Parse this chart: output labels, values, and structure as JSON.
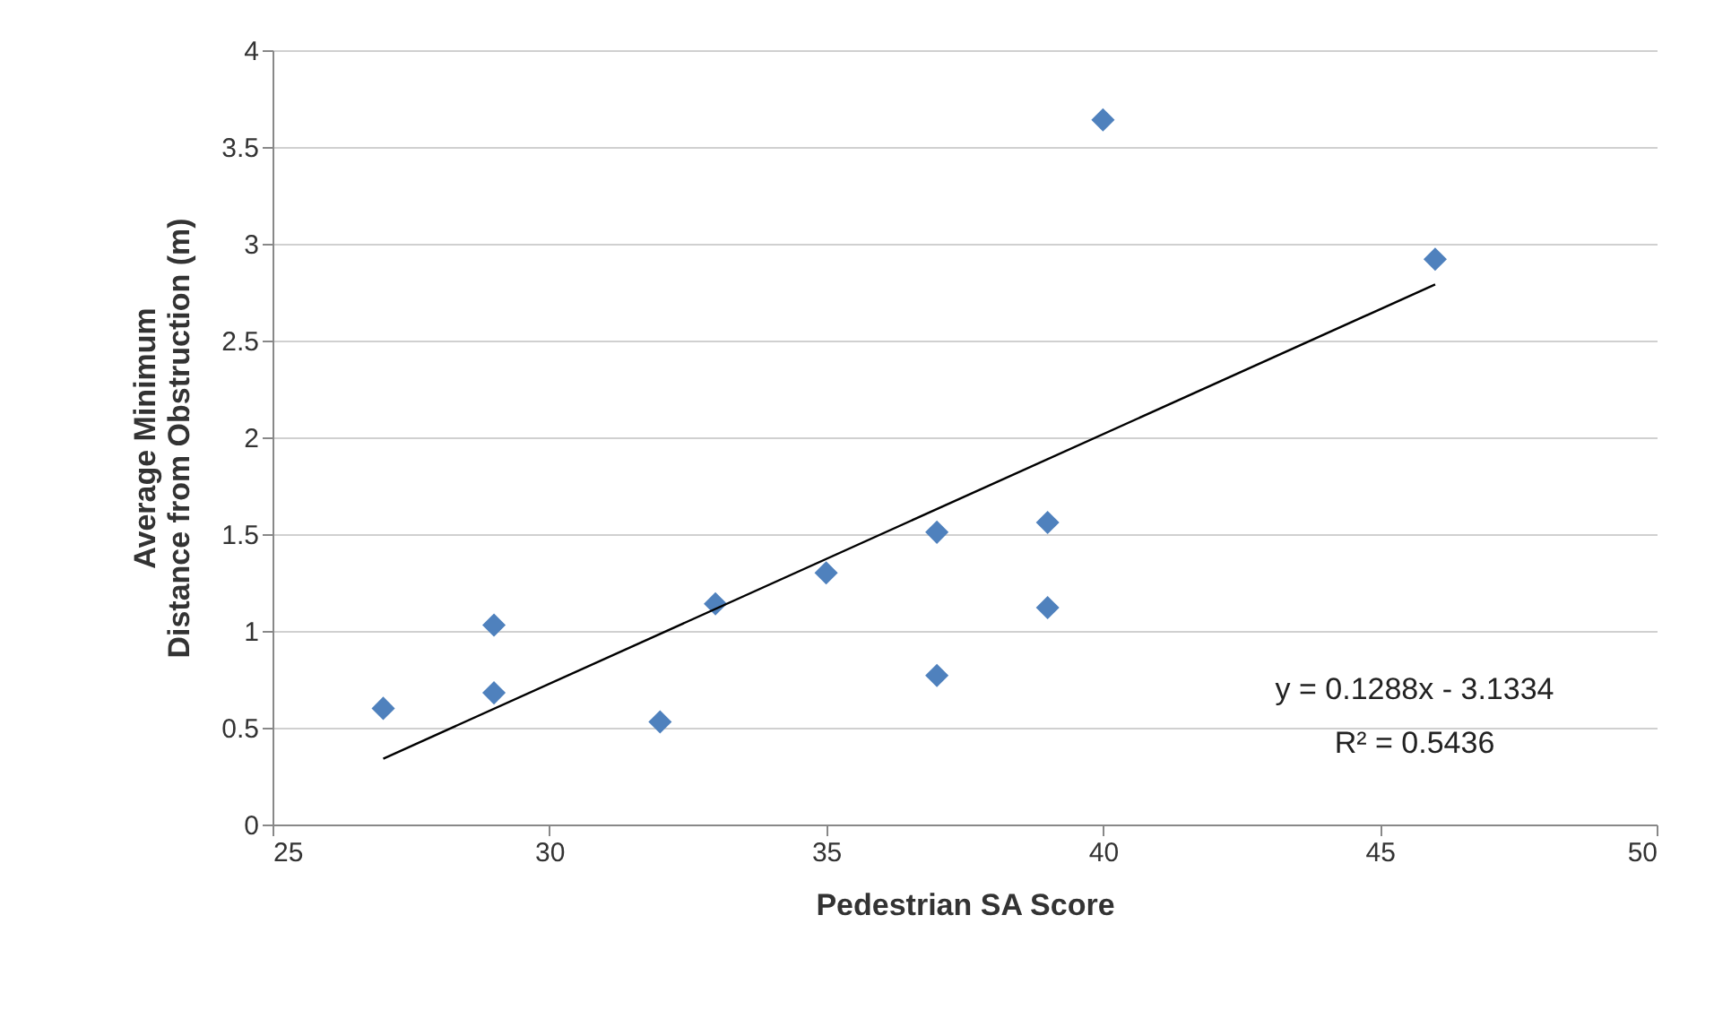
{
  "chart_data": {
    "type": "scatter",
    "xlabel": "Pedestrian SA Score",
    "ylabel": "Average Minimum Distance from Obstruction (m)",
    "xlim": [
      25,
      50
    ],
    "xticks": [
      25,
      30,
      35,
      40,
      45,
      50
    ],
    "ylim": [
      0,
      4
    ],
    "yticks": [
      0,
      0.5,
      1,
      1.5,
      2,
      2.5,
      3,
      3.5,
      4
    ],
    "grid": "y",
    "legend": false,
    "marker": "diamond",
    "annotations": [
      "y = 0.1288x - 3.1334",
      "R² = 0.5436"
    ],
    "series": [
      {
        "color": "#4f81bd",
        "x": [
          27,
          29,
          29,
          32,
          33,
          35,
          37,
          37,
          39,
          39,
          40,
          46
        ],
        "values": [
          0.6,
          1.03,
          0.68,
          0.53,
          1.14,
          1.3,
          1.51,
          0.77,
          1.56,
          1.12,
          3.64,
          2.92
        ]
      },
      {
        "type": "line",
        "color": "#000000",
        "marker": "none",
        "x": [
          27,
          46
        ],
        "values": [
          0.34,
          2.79
        ]
      }
    ]
  }
}
